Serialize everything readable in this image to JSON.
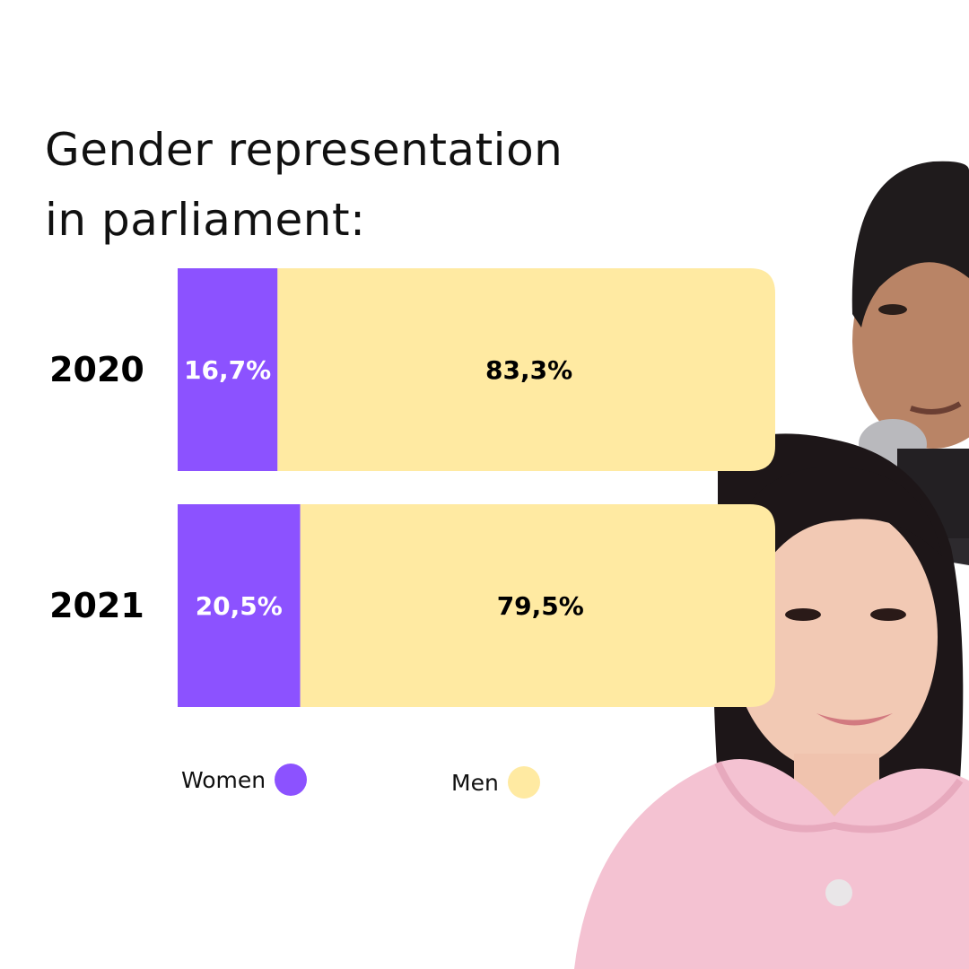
{
  "title": {
    "line1": "Gender representation",
    "line2": "in parliament:"
  },
  "colors": {
    "women": "#8c52ff",
    "men": "#ffeaa2"
  },
  "legend": {
    "women": "Women",
    "men": "Men"
  },
  "chart_data": {
    "type": "bar",
    "orientation": "horizontal",
    "stacked": true,
    "categories": [
      "2020",
      "2021"
    ],
    "series": [
      {
        "name": "Women",
        "values": [
          16.7,
          20.5
        ],
        "labels": [
          "16,7%",
          "20,5%"
        ]
      },
      {
        "name": "Men",
        "values": [
          83.3,
          79.5
        ],
        "labels": [
          "83,3%",
          "79,5%"
        ]
      }
    ],
    "xlim": [
      0,
      100
    ],
    "grid": false,
    "legend_position": "bottom"
  }
}
